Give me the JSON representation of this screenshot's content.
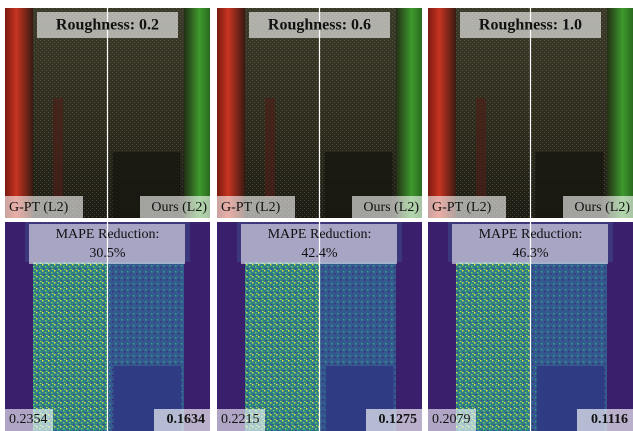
{
  "panels": [
    {
      "roughness_label": "Roughness: 0.2",
      "left_label": "G-PT (L2)",
      "right_label": "Ours (L2)",
      "reduction_label": "MAPE Reduction:",
      "reduction_value": "30.5%",
      "left_error": "0.2354",
      "right_error": "0.1634"
    },
    {
      "roughness_label": "Roughness: 0.6",
      "left_label": "G-PT (L2)",
      "right_label": "Ours (L2)",
      "reduction_label": "MAPE Reduction:",
      "reduction_value": "42.4%",
      "left_error": "0.2215",
      "right_error": "0.1275"
    },
    {
      "roughness_label": "Roughness: 1.0",
      "left_label": "G-PT (L2)",
      "right_label": "Ours (L2)",
      "reduction_label": "MAPE Reduction:",
      "reduction_value": "46.3%",
      "left_error": "0.2079",
      "right_error": "0.1116"
    }
  ]
}
